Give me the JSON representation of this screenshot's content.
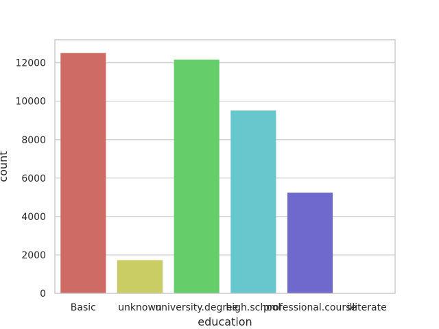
{
  "chart_data": {
    "type": "bar",
    "title": "",
    "xlabel": "education",
    "ylabel": "count",
    "categories": [
      "Basic",
      "unknown",
      "university.degree",
      "high.school",
      "professional.course",
      "illiterate"
    ],
    "values": [
      12513,
      1731,
      12168,
      9515,
      5243,
      18
    ],
    "colors": [
      "#cd6b64",
      "#c9cd64",
      "#66cd6b",
      "#68c6cd",
      "#6f68cd",
      "#cd6bc7"
    ],
    "ylim": [
      0,
      13200
    ],
    "yticks": [
      0,
      2000,
      4000,
      6000,
      8000,
      10000,
      12000
    ],
    "grid": true
  }
}
